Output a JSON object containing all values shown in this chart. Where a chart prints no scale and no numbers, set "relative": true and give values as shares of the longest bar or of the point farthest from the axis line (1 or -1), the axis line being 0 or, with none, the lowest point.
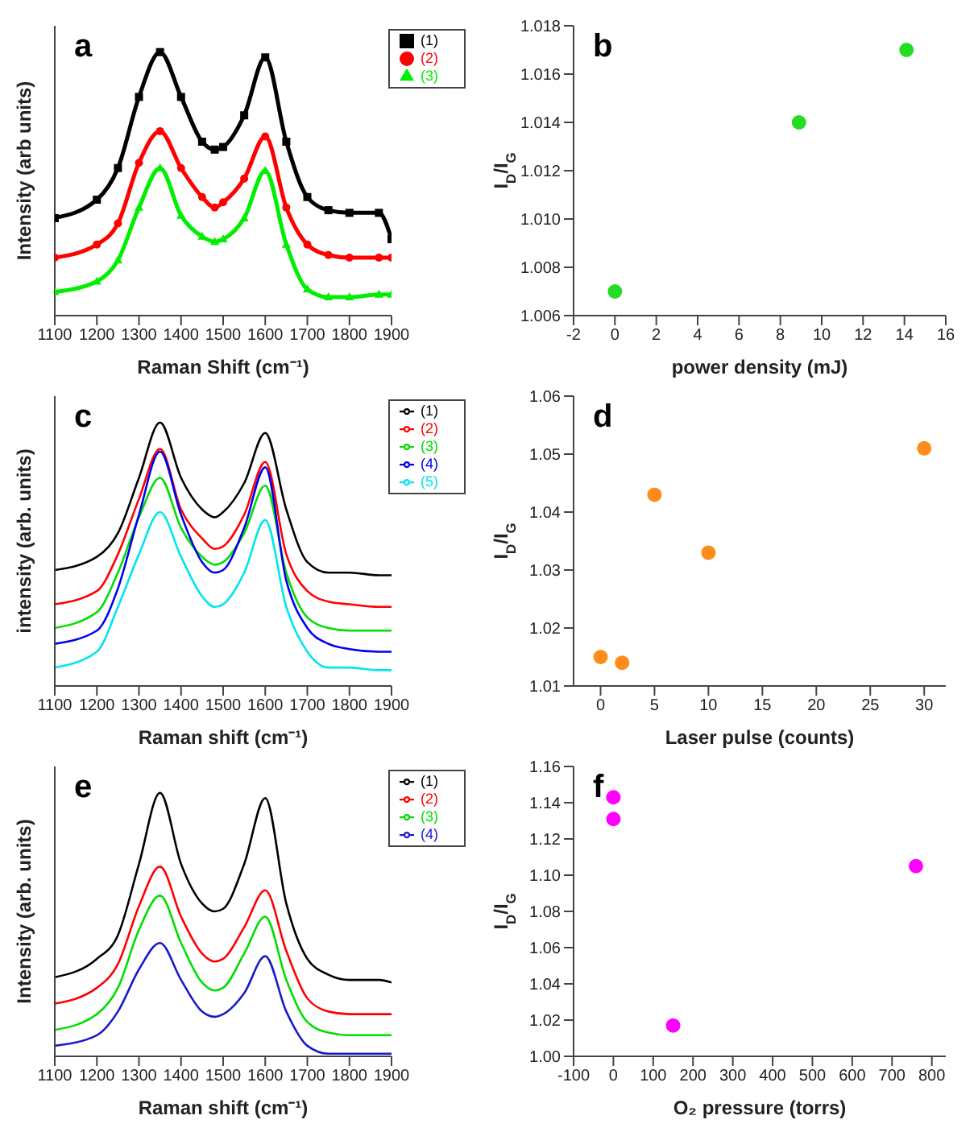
{
  "chart_data": [
    {
      "type": "line",
      "title": "a",
      "xlabel": "Raman Shift (cm⁻¹)",
      "ylabel": "Intensity (arb units)",
      "relative": true,
      "legend": "top right",
      "x": [
        1100,
        1200,
        1250,
        1300,
        1350,
        1400,
        1450,
        1480,
        1500,
        1550,
        1600,
        1650,
        1700,
        1750,
        1800,
        1870,
        1900
      ],
      "xlim": [
        1100,
        1900
      ],
      "xticks": [
        1100,
        1200,
        1300,
        1400,
        1500,
        1600,
        1700,
        1800,
        1900
      ],
      "series": [
        {
          "name": "(1)",
          "color": "#000000",
          "marker": "square",
          "values": [
            0.37,
            0.44,
            0.56,
            0.83,
            1,
            0.83,
            0.66,
            0.63,
            0.64,
            0.76,
            0.98,
            0.66,
            0.45,
            0.4,
            0.39,
            0.39,
            0.29
          ]
        },
        {
          "name": "(2)",
          "color": "#ff0000",
          "marker": "circle",
          "values": [
            0.22,
            0.27,
            0.35,
            0.58,
            0.7,
            0.56,
            0.45,
            0.41,
            0.43,
            0.52,
            0.68,
            0.41,
            0.27,
            0.23,
            0.22,
            0.22,
            0.22
          ]
        },
        {
          "name": "(3)",
          "color": "#00ee00",
          "marker": "triangle",
          "values": [
            0.09,
            0.13,
            0.21,
            0.41,
            0.56,
            0.38,
            0.3,
            0.28,
            0.29,
            0.37,
            0.55,
            0.27,
            0.1,
            0.07,
            0.07,
            0.08,
            0.08
          ]
        }
      ]
    },
    {
      "type": "scatter",
      "title": "b",
      "xlabel": "power density (mJ)",
      "ylabel": "I$_{D}$/I$_{G}$",
      "marker": "circle",
      "xlim": [
        -2,
        16
      ],
      "xticks": [
        -2,
        0,
        2,
        4,
        6,
        8,
        10,
        12,
        14,
        16
      ],
      "ylim": [
        1.006,
        1.018
      ],
      "yticks": [
        1.006,
        1.008,
        {
          "value": 1.01,
          "label": "1.010"
        },
        1.012,
        1.014,
        1.016,
        1.018
      ],
      "series": [
        {
          "color": "#22dd22",
          "x": [
            0,
            8.9,
            14.1
          ],
          "values": [
            1.007,
            1.014,
            1.017
          ]
        }
      ]
    },
    {
      "type": "line",
      "title": "c",
      "xlabel": "Raman shift (cm⁻¹)",
      "ylabel": "intensity (arb. units)",
      "relative": true,
      "legend": "top right",
      "x": [
        1100,
        1200,
        1250,
        1300,
        1350,
        1400,
        1450,
        1480,
        1500,
        1550,
        1600,
        1650,
        1700,
        1750,
        1800,
        1870,
        1900
      ],
      "xlim": [
        1100,
        1900
      ],
      "xticks": [
        1100,
        1200,
        1300,
        1400,
        1500,
        1600,
        1700,
        1800,
        1900
      ],
      "series": [
        {
          "name": "(1)",
          "color": "#000000",
          "values": [
            0.44,
            0.49,
            0.58,
            0.79,
            1,
            0.79,
            0.67,
            0.64,
            0.66,
            0.77,
            0.96,
            0.67,
            0.47,
            0.43,
            0.43,
            0.42,
            0.42
          ]
        },
        {
          "name": "(2)",
          "color": "#ff0000",
          "values": [
            0.31,
            0.36,
            0.5,
            0.71,
            0.9,
            0.67,
            0.56,
            0.52,
            0.53,
            0.65,
            0.85,
            0.5,
            0.36,
            0.32,
            0.31,
            0.3,
            0.3
          ]
        },
        {
          "name": "(3)",
          "color": "#00dd00",
          "values": [
            0.22,
            0.28,
            0.43,
            0.64,
            0.79,
            0.6,
            0.49,
            0.46,
            0.47,
            0.58,
            0.76,
            0.43,
            0.26,
            0.22,
            0.21,
            0.21,
            0.21
          ]
        },
        {
          "name": "(4)",
          "color": "#0000ee",
          "values": [
            0.16,
            0.21,
            0.37,
            0.65,
            0.89,
            0.65,
            0.47,
            0.43,
            0.44,
            0.6,
            0.83,
            0.4,
            0.22,
            0.16,
            0.14,
            0.13,
            0.13
          ]
        },
        {
          "name": "(5)",
          "color": "#00e5ee",
          "values": [
            0.07,
            0.13,
            0.3,
            0.5,
            0.66,
            0.49,
            0.34,
            0.3,
            0.31,
            0.43,
            0.63,
            0.3,
            0.13,
            0.07,
            0.07,
            0.06,
            0.06
          ]
        }
      ]
    },
    {
      "type": "scatter",
      "title": "d",
      "xlabel": "Laser pulse (counts)",
      "ylabel": "I$_{D}$/I$_{G}$",
      "marker": "circle",
      "xlim": [
        -2.5,
        32
      ],
      "xticks": [
        0,
        5,
        10,
        15,
        20,
        25,
        30
      ],
      "ylim": [
        1.01,
        1.06
      ],
      "yticks": [
        1.01,
        1.02,
        1.03,
        1.04,
        1.05,
        1.06
      ],
      "series": [
        {
          "color": "#ff8c1a",
          "x": [
            0,
            2,
            5,
            10,
            30
          ],
          "values": [
            1.015,
            1.014,
            1.043,
            1.033,
            1.051
          ]
        }
      ]
    },
    {
      "type": "line",
      "title": "e",
      "xlabel": "Raman shift (cm⁻¹)",
      "ylabel": "Intensity (arb. units)",
      "relative": true,
      "legend": "top right",
      "x": [
        1100,
        1200,
        1250,
        1300,
        1350,
        1400,
        1450,
        1480,
        1500,
        1550,
        1600,
        1650,
        1700,
        1750,
        1800,
        1870,
        1900
      ],
      "xlim": [
        1100,
        1900
      ],
      "xticks": [
        1100,
        1200,
        1300,
        1400,
        1500,
        1600,
        1700,
        1800,
        1900
      ],
      "series": [
        {
          "name": "(1)",
          "color": "#000000",
          "values": [
            0.3,
            0.37,
            0.46,
            0.73,
            1,
            0.73,
            0.58,
            0.55,
            0.56,
            0.73,
            0.98,
            0.58,
            0.37,
            0.31,
            0.29,
            0.29,
            0.28
          ]
        },
        {
          "name": "(2)",
          "color": "#ff0000",
          "values": [
            0.2,
            0.26,
            0.35,
            0.57,
            0.72,
            0.53,
            0.39,
            0.36,
            0.37,
            0.49,
            0.63,
            0.4,
            0.22,
            0.17,
            0.16,
            0.16,
            0.16
          ]
        },
        {
          "name": "(3)",
          "color": "#00dd00",
          "values": [
            0.1,
            0.16,
            0.26,
            0.48,
            0.61,
            0.43,
            0.28,
            0.25,
            0.26,
            0.39,
            0.53,
            0.29,
            0.13,
            0.09,
            0.08,
            0.08,
            0.08
          ]
        },
        {
          "name": "(4)",
          "color": "#1a1acc",
          "values": [
            0.04,
            0.08,
            0.17,
            0.33,
            0.43,
            0.29,
            0.17,
            0.15,
            0.16,
            0.24,
            0.38,
            0.17,
            0.04,
            0.01,
            0.01,
            0.01,
            0.01
          ]
        }
      ]
    },
    {
      "type": "scatter",
      "title": "f",
      "xlabel": "O₂ pressure (torrs)",
      "ylabel": "I$_{D}$/I$_{G}$",
      "marker": "circle",
      "xlim": [
        -100,
        835
      ],
      "xticks": [
        -100,
        0,
        100,
        200,
        300,
        400,
        500,
        600,
        700,
        800
      ],
      "ylim": [
        1.0,
        1.16
      ],
      "yticks": [
        {
          "value": 1.0,
          "label": "1.00"
        },
        1.02,
        1.04,
        1.06,
        1.08,
        {
          "value": 1.1,
          "label": "1.10"
        },
        1.12,
        1.14,
        1.16
      ],
      "series": [
        {
          "color": "#ff00ff",
          "x": [
            0,
            0,
            150,
            760
          ],
          "values": [
            1.143,
            1.131,
            1.017,
            1.105
          ]
        }
      ]
    }
  ]
}
